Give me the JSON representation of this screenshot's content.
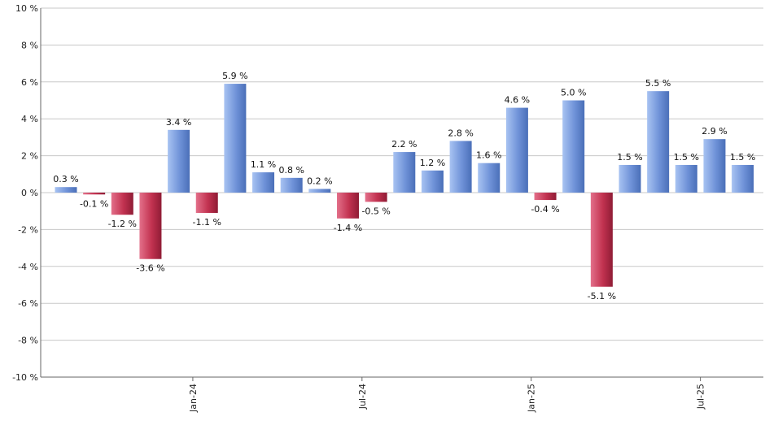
{
  "chart_data": {
    "type": "bar",
    "ylim": [
      -10,
      10
    ],
    "y_ticks": [
      {
        "value": 10,
        "label": "10 %"
      },
      {
        "value": 8,
        "label": "8 %"
      },
      {
        "value": 6,
        "label": "6 %"
      },
      {
        "value": 4,
        "label": "4 %"
      },
      {
        "value": 2,
        "label": "2 %"
      },
      {
        "value": 0,
        "label": "0 %"
      },
      {
        "value": -2,
        "label": "-2 %"
      },
      {
        "value": -4,
        "label": "-4 %"
      },
      {
        "value": -6,
        "label": "-6 %"
      },
      {
        "value": -8,
        "label": "-8 %"
      },
      {
        "value": -10,
        "label": "-10 %"
      }
    ],
    "x_tick_labels": [
      {
        "index": 4.5,
        "label": "Jan-24"
      },
      {
        "index": 10.5,
        "label": "Jul-24"
      },
      {
        "index": 16.5,
        "label": "Jan-25"
      },
      {
        "index": 22.5,
        "label": "Jul-25"
      }
    ],
    "values": [
      0.3,
      -0.1,
      -1.2,
      -3.6,
      3.4,
      -1.1,
      5.9,
      1.1,
      0.8,
      0.2,
      -1.4,
      -0.5,
      2.2,
      1.2,
      2.8,
      1.6,
      4.6,
      -0.4,
      5.0,
      -5.1,
      1.5,
      5.5,
      1.5,
      2.9,
      1.5
    ],
    "data_labels": [
      "0.3 %",
      "-0.1 %",
      "-1.2 %",
      "-3.6 %",
      "3.4 %",
      "-1.1 %",
      "5.9 %",
      "1.1 %",
      "0.8 %",
      "0.2 %",
      "-1.4 %",
      "-0.5 %",
      "2.2 %",
      "1.2 %",
      "2.8 %",
      "1.6 %",
      "4.6 %",
      "-0.4 %",
      "5.0 %",
      "-5.1 %",
      "1.5 %",
      "5.5 %",
      "1.5 %",
      "2.9 %",
      "1.5 %"
    ],
    "grid": true,
    "legend": "none",
    "colors": {
      "positive": "#7b9ee0",
      "negative": "#c8344e",
      "grid": "#c8c8c8",
      "axis": "#666666"
    }
  }
}
